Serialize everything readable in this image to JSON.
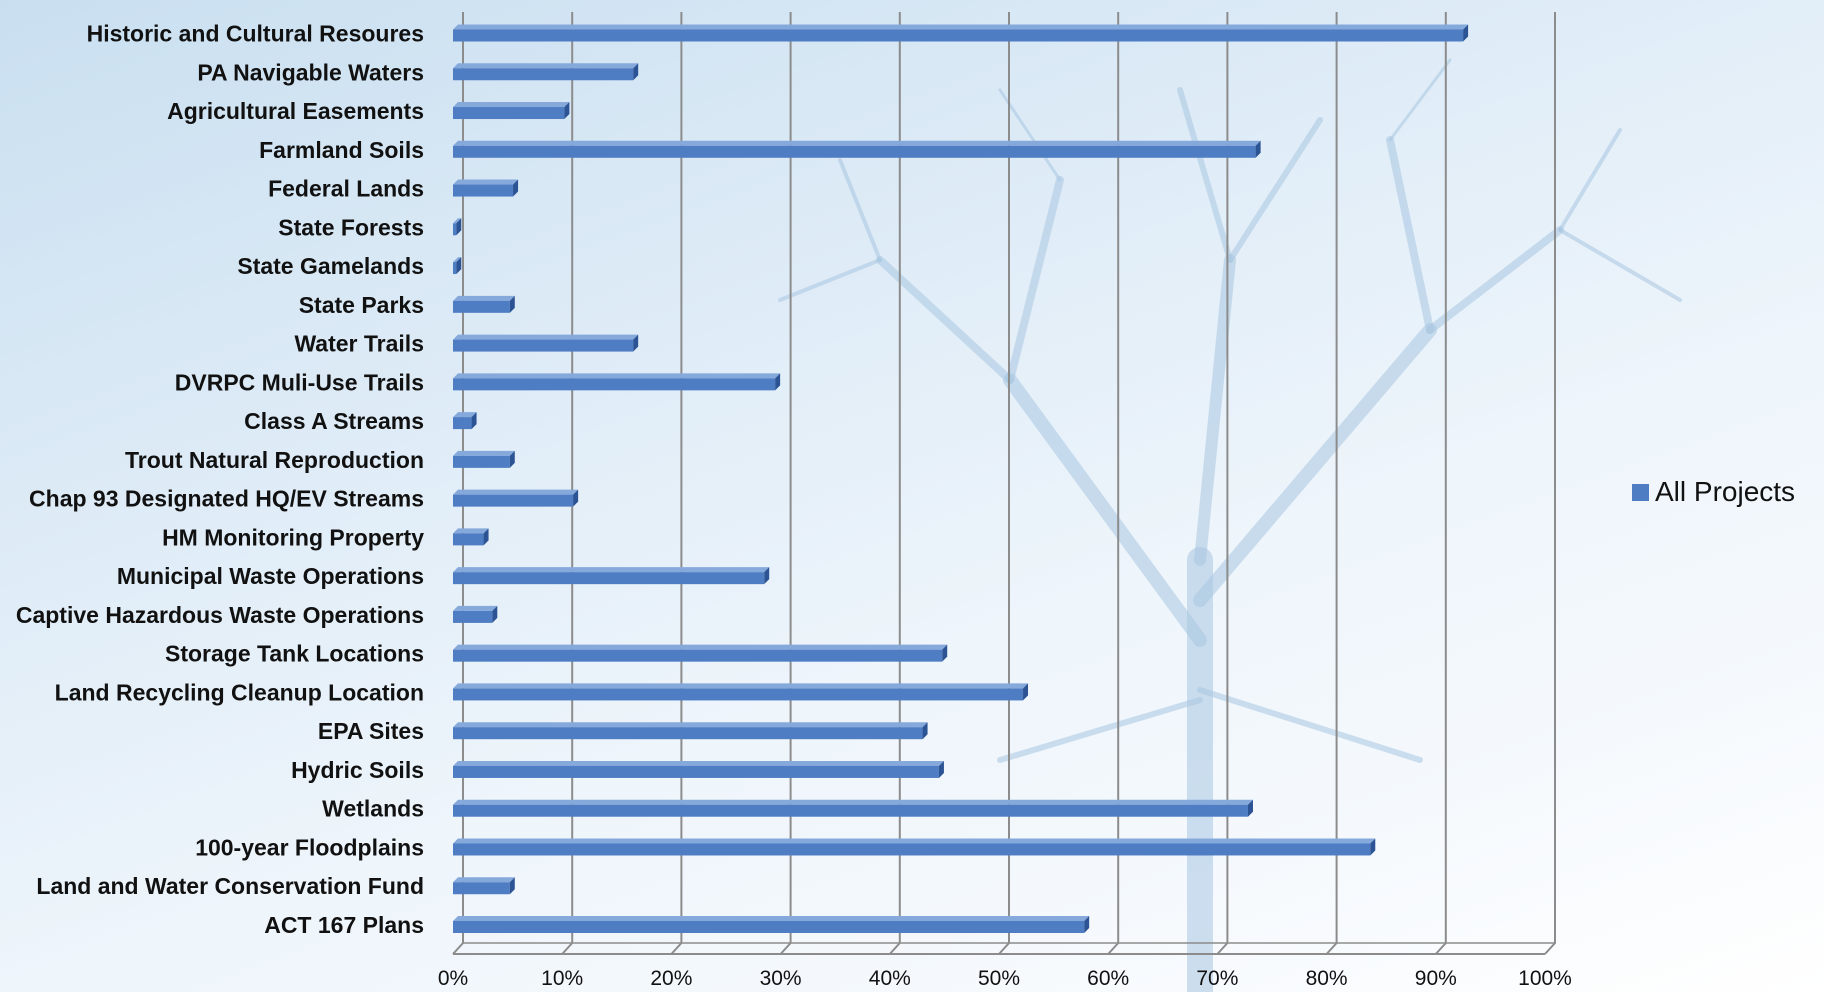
{
  "colors": {
    "bar_front": "#4f7dc4",
    "bar_top": "#86a9dc",
    "bar_side": "#2c5494",
    "grid": "#8c8c8c"
  },
  "chart_data": {
    "type": "bar",
    "orientation": "horizontal",
    "style": "3d",
    "title": "",
    "xlabel": "",
    "ylabel": "",
    "xlim": [
      0,
      100
    ],
    "x_ticks": [
      "0%",
      "10%",
      "20%",
      "30%",
      "40%",
      "50%",
      "60%",
      "70%",
      "80%",
      "90%",
      "100%"
    ],
    "grid": true,
    "legend_position": "right",
    "categories": [
      "Historic and Cultural Resoures",
      "PA Navigable Waters",
      "Agricultural Easements",
      "Farmland Soils",
      "Federal Lands",
      "State Forests",
      "State Gamelands",
      "State Parks",
      "Water Trails",
      "DVRPC Muli-Use Trails",
      "Class A Streams",
      "Trout Natural Reproduction",
      "Chap 93 Designated HQ/EV Streams",
      "HM Monitoring Property",
      "Municipal Waste Operations",
      "Captive Hazardous Waste Operations",
      "Storage Tank Locations",
      "Land Recycling Cleanup Location",
      "EPA Sites",
      "Hydric Soils",
      "Wetlands",
      "100-year Floodplains",
      "Land and Water Conservation Fund",
      "ACT 167 Plans"
    ],
    "series": [
      {
        "name": "All Projects",
        "values": [
          92.5,
          16.5,
          10.2,
          73.5,
          5.5,
          0.3,
          0.3,
          5.2,
          16.5,
          29.5,
          1.7,
          5.2,
          11.0,
          2.8,
          28.5,
          3.6,
          44.8,
          52.2,
          43.0,
          44.5,
          72.8,
          84.0,
          5.2,
          57.8
        ]
      }
    ]
  }
}
